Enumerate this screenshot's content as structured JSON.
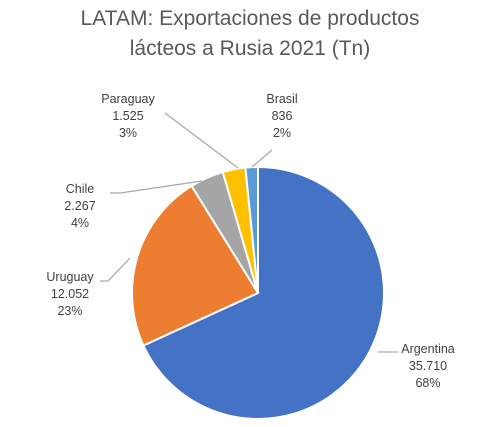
{
  "chart_data": {
    "type": "pie",
    "title_lines": [
      "LATAM: Exportaciones de productos",
      "lácteos a Rusia 2021 (Tn)"
    ],
    "slices": [
      {
        "label": "Argentina",
        "value_text": "35.710",
        "percent_text": "68%",
        "value": 35710,
        "color": "#4472c4"
      },
      {
        "label": "Uruguay",
        "value_text": "12.052",
        "percent_text": "23%",
        "value": 12052,
        "color": "#ed7d31"
      },
      {
        "label": "Chile",
        "value_text": "2.267",
        "percent_text": "4%",
        "value": 2267,
        "color": "#a5a5a5"
      },
      {
        "label": "Paraguay",
        "value_text": "1.525",
        "percent_text": "3%",
        "value": 1525,
        "color": "#ffc000"
      },
      {
        "label": "Brasil",
        "value_text": "836",
        "percent_text": "2%",
        "value": 836,
        "color": "#5b9bd5"
      }
    ]
  }
}
